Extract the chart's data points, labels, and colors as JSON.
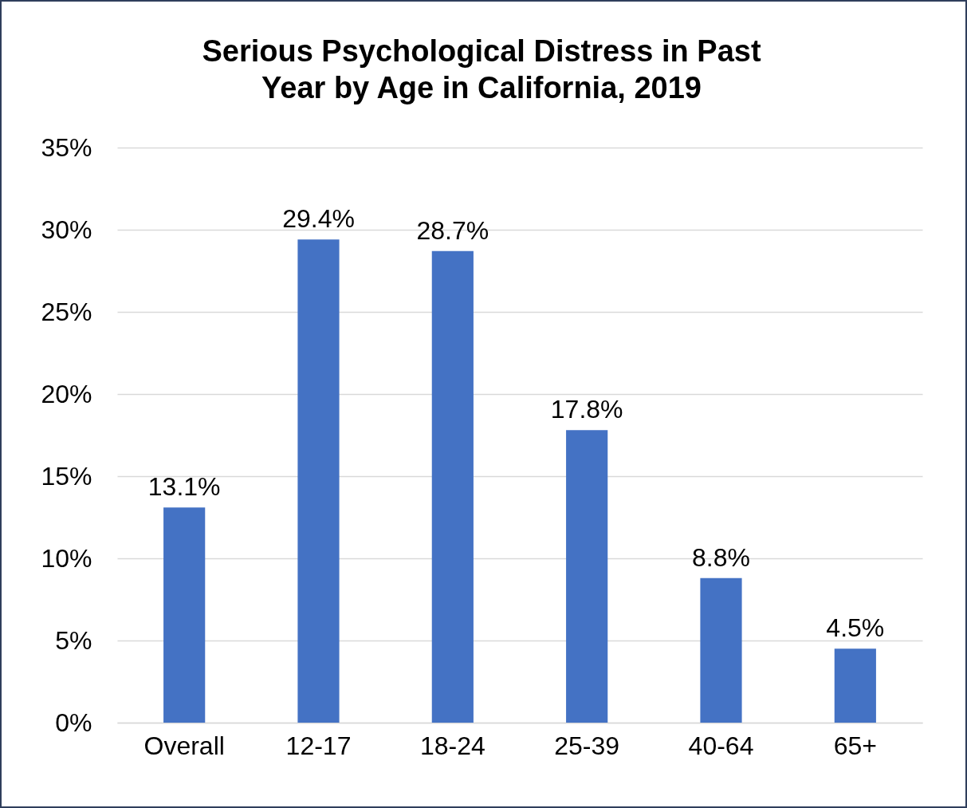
{
  "chart_data": {
    "type": "bar",
    "title": [
      "Serious Psychological Distress in Past",
      "Year by Age in California, 2019"
    ],
    "categories": [
      "Overall",
      "12-17",
      "18-24",
      "25-39",
      "40-64",
      "65+"
    ],
    "values": [
      13.1,
      29.4,
      28.7,
      17.8,
      8.8,
      4.5
    ],
    "value_labels": [
      "13.1%",
      "29.4%",
      "28.7%",
      "17.8%",
      "8.8%",
      "4.5%"
    ],
    "color": "#4472c4",
    "ylim": [
      0,
      35
    ],
    "yticks": [
      {
        "value": 0,
        "label": "0%"
      },
      {
        "value": 5,
        "label": "5%"
      },
      {
        "value": 10,
        "label": "10%"
      },
      {
        "value": 15,
        "label": "15%"
      },
      {
        "value": 20,
        "label": "20%"
      },
      {
        "value": 25,
        "label": "25%"
      },
      {
        "value": 30,
        "label": "30%"
      },
      {
        "value": 35,
        "label": "35%"
      }
    ],
    "grid": "y"
  }
}
